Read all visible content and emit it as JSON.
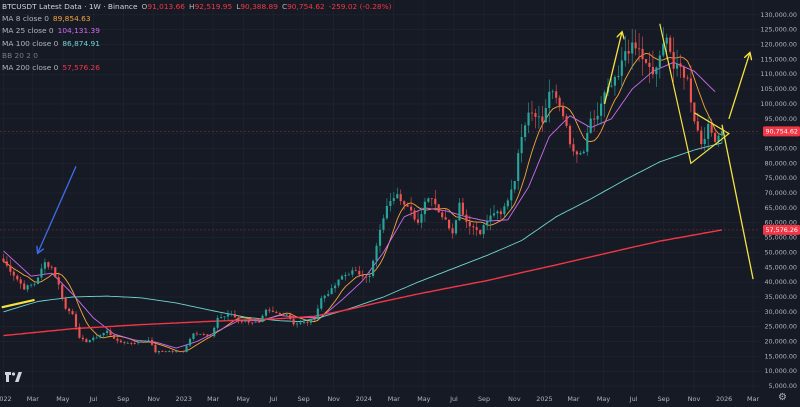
{
  "legend": {
    "title": "BTCUSDT Latest Data · 1W · Binance",
    "ohlc": {
      "o_label": "O",
      "o": "91,013.66",
      "h_label": "H",
      "h": "92,519.95",
      "l_label": "L",
      "l": "90,388.89",
      "c_label": "C",
      "c": "90,754.62",
      "chg": "-259.02 (-0.28%)"
    },
    "indicators": [
      {
        "label": "MA 8 close 0",
        "value": "89,854.63",
        "color": "#f7a53a"
      },
      {
        "label": "MA 25 close 0",
        "value": "104,131.39",
        "color": "#cc6cf0"
      },
      {
        "label": "MA 100 close 0",
        "value": "86,874.91",
        "color": "#6fd6d0"
      },
      {
        "label": "BB 20 2 0",
        "value": "",
        "color": "#787b86"
      },
      {
        "label": "MA 200 close 0",
        "value": "57,576.26",
        "color": "#f23645"
      }
    ]
  },
  "price_badges": [
    {
      "value": "90,754.62",
      "price": 90754.62,
      "color": "#f23645"
    },
    {
      "value": "57,576.26",
      "price": 57576.26,
      "color": "#f23645"
    }
  ],
  "y_ticks": [
    "5,000.00",
    "10,000.00",
    "15,000.00",
    "20,000.00",
    "25,000.00",
    "30,000.00",
    "35,000.00",
    "40,000.00",
    "45,000.00",
    "50,000.00",
    "55,000.00",
    "60,000.00",
    "65,000.00",
    "70,000.00",
    "75,000.00",
    "80,000.00",
    "85,000.00",
    "90,000.00",
    "95,000.00",
    "100,000.00",
    "105,000.00",
    "110,000.00",
    "115,000.00",
    "120,000.00",
    "125,000.00",
    "130,000.00"
  ],
  "x_ticks": [
    {
      "label": "2022",
      "week": 0
    },
    {
      "label": "Mar",
      "week": 8.5
    },
    {
      "label": "May",
      "week": 17.2
    },
    {
      "label": "Jul",
      "week": 26
    },
    {
      "label": "Sep",
      "week": 34.7
    },
    {
      "label": "Nov",
      "week": 43.5
    },
    {
      "label": "2023",
      "week": 52.2
    },
    {
      "label": "Mar",
      "week": 60.7
    },
    {
      "label": "May",
      "week": 69.4
    },
    {
      "label": "Jul",
      "week": 78.1
    },
    {
      "label": "Sep",
      "week": 86.9
    },
    {
      "label": "Nov",
      "week": 95.6
    },
    {
      "label": "2024",
      "week": 104.3
    },
    {
      "label": "Mar",
      "week": 113
    },
    {
      "label": "May",
      "week": 121.7
    },
    {
      "label": "Jul",
      "week": 130.4
    },
    {
      "label": "Sep",
      "week": 139.1
    },
    {
      "label": "Nov",
      "week": 147.9
    },
    {
      "label": "2025",
      "week": 156.6
    },
    {
      "label": "Mar",
      "week": 165
    },
    {
      "label": "May",
      "week": 173.7
    },
    {
      "label": "Jul",
      "week": 182.4
    },
    {
      "label": "Sep",
      "week": 191.1
    },
    {
      "label": "Nov",
      "week": 199.9
    },
    {
      "label": "2026",
      "week": 208.6
    },
    {
      "label": "Mar",
      "week": 217
    }
  ],
  "chart_data": {
    "type": "line",
    "up_color": "#26a69a",
    "down_color": "#ef5350",
    "ylim": [
      3000,
      135000
    ],
    "xlim_weeks": [
      -1,
      219
    ],
    "close_keypoints": [
      [
        0,
        47000
      ],
      [
        3,
        42500
      ],
      [
        6,
        38000
      ],
      [
        9,
        39500
      ],
      [
        12,
        46500
      ],
      [
        14,
        45000
      ],
      [
        16,
        39000
      ],
      [
        18,
        31000
      ],
      [
        20,
        29500
      ],
      [
        22,
        21000
      ],
      [
        24,
        20000
      ],
      [
        27,
        21500
      ],
      [
        30,
        23500
      ],
      [
        33,
        20000
      ],
      [
        36,
        19500
      ],
      [
        39,
        19800
      ],
      [
        42,
        20800
      ],
      [
        44,
        16500
      ],
      [
        47,
        16800
      ],
      [
        50,
        16600
      ],
      [
        52,
        16700
      ],
      [
        55,
        23000
      ],
      [
        58,
        22300
      ],
      [
        60,
        21500
      ],
      [
        62,
        28000
      ],
      [
        64,
        28500
      ],
      [
        66,
        29300
      ],
      [
        68,
        27000
      ],
      [
        70,
        26800
      ],
      [
        74,
        26300
      ],
      [
        76,
        30300
      ],
      [
        80,
        29200
      ],
      [
        82,
        29300
      ],
      [
        84,
        26000
      ],
      [
        88,
        26500
      ],
      [
        90,
        27900
      ],
      [
        92,
        34500
      ],
      [
        95,
        37400
      ],
      [
        98,
        41900
      ],
      [
        101,
        43600
      ],
      [
        104,
        42500
      ],
      [
        106,
        41800
      ],
      [
        108,
        52000
      ],
      [
        110,
        62000
      ],
      [
        112,
        68000
      ],
      [
        114,
        70500
      ],
      [
        116,
        66000
      ],
      [
        118,
        63500
      ],
      [
        120,
        60000
      ],
      [
        122,
        67500
      ],
      [
        124,
        69000
      ],
      [
        126,
        64000
      ],
      [
        128,
        60500
      ],
      [
        130,
        57000
      ],
      [
        132,
        66500
      ],
      [
        134,
        60500
      ],
      [
        136,
        58500
      ],
      [
        138,
        57000
      ],
      [
        140,
        60500
      ],
      [
        142,
        63500
      ],
      [
        144,
        62500
      ],
      [
        146,
        68000
      ],
      [
        148,
        75000
      ],
      [
        150,
        90000
      ],
      [
        152,
        98000
      ],
      [
        154,
        97000
      ],
      [
        156,
        94000
      ],
      [
        158,
        104000
      ],
      [
        160,
        102000
      ],
      [
        162,
        97000
      ],
      [
        164,
        86000
      ],
      [
        166,
        82000
      ],
      [
        168,
        84000
      ],
      [
        170,
        94000
      ],
      [
        172,
        96000
      ],
      [
        174,
        103000
      ],
      [
        176,
        106000
      ],
      [
        178,
        109000
      ],
      [
        180,
        118000
      ],
      [
        182,
        119000
      ],
      [
        184,
        118000
      ],
      [
        186,
        113000
      ],
      [
        188,
        110000
      ],
      [
        190,
        115000
      ],
      [
        192,
        124000
      ],
      [
        194,
        112000
      ],
      [
        196,
        112000
      ],
      [
        198,
        108000
      ],
      [
        200,
        95000
      ],
      [
        202,
        87000
      ],
      [
        204,
        92000
      ],
      [
        206,
        88500
      ],
      [
        208,
        90754
      ]
    ],
    "indicators": [
      {
        "name": "MA 25",
        "color": "#cc6cf0",
        "keypoints": [
          [
            0,
            50500
          ],
          [
            8,
            42000
          ],
          [
            14,
            43000
          ],
          [
            20,
            36000
          ],
          [
            26,
            28000
          ],
          [
            32,
            22500
          ],
          [
            38,
            20500
          ],
          [
            44,
            19800
          ],
          [
            50,
            17800
          ],
          [
            56,
            20000
          ],
          [
            62,
            23500
          ],
          [
            68,
            27000
          ],
          [
            74,
            27000
          ],
          [
            80,
            28800
          ],
          [
            86,
            28000
          ],
          [
            92,
            28200
          ],
          [
            98,
            34000
          ],
          [
            104,
            40500
          ],
          [
            110,
            50000
          ],
          [
            116,
            62000
          ],
          [
            122,
            65000
          ],
          [
            128,
            64000
          ],
          [
            134,
            62000
          ],
          [
            140,
            60500
          ],
          [
            146,
            61000
          ],
          [
            152,
            72000
          ],
          [
            158,
            89000
          ],
          [
            164,
            96000
          ],
          [
            170,
            92000
          ],
          [
            176,
            95000
          ],
          [
            182,
            105000
          ],
          [
            188,
            111000
          ],
          [
            194,
            114000
          ],
          [
            200,
            111000
          ],
          [
            206,
            104131
          ]
        ]
      },
      {
        "name": "MA 100",
        "color": "#6fd6d0",
        "keypoints": [
          [
            0,
            30000
          ],
          [
            10,
            33500
          ],
          [
            20,
            35000
          ],
          [
            30,
            35300
          ],
          [
            40,
            34700
          ],
          [
            50,
            33000
          ],
          [
            60,
            30500
          ],
          [
            70,
            28200
          ],
          [
            80,
            27000
          ],
          [
            86,
            26700
          ],
          [
            92,
            28200
          ],
          [
            100,
            31000
          ],
          [
            110,
            35000
          ],
          [
            120,
            40000
          ],
          [
            130,
            44500
          ],
          [
            140,
            49000
          ],
          [
            150,
            54000
          ],
          [
            160,
            62000
          ],
          [
            170,
            68000
          ],
          [
            180,
            74500
          ],
          [
            190,
            80500
          ],
          [
            200,
            84500
          ],
          [
            208,
            86875
          ]
        ]
      },
      {
        "name": "MA 200",
        "color": "#f23645",
        "keypoints": [
          [
            0,
            22000
          ],
          [
            20,
            24300
          ],
          [
            40,
            25700
          ],
          [
            60,
            26800
          ],
          [
            80,
            27700
          ],
          [
            90,
            28500
          ],
          [
            100,
            30800
          ],
          [
            110,
            33500
          ],
          [
            120,
            36000
          ],
          [
            130,
            38300
          ],
          [
            140,
            40500
          ],
          [
            150,
            43200
          ],
          [
            160,
            45800
          ],
          [
            170,
            48500
          ],
          [
            180,
            51200
          ],
          [
            190,
            53800
          ],
          [
            200,
            55900
          ],
          [
            208,
            57576
          ]
        ]
      }
    ],
    "annotations": [
      {
        "type": "arrow",
        "color": "#3d6ce8",
        "from": [
          21,
          79000
        ],
        "to": [
          10,
          50000
        ]
      },
      {
        "type": "arrow",
        "color": "#f5e341",
        "from": [
          174,
          100000
        ],
        "to": [
          179,
          124000
        ]
      },
      {
        "type": "arrow",
        "color": "#f5e341",
        "from": [
          210,
          95000
        ],
        "to": [
          216,
          117000
        ]
      },
      {
        "type": "line",
        "color": "#f5e341",
        "from": [
          208,
          93000
        ],
        "to": [
          217,
          41000
        ]
      },
      {
        "type": "line",
        "color": "#f5e341",
        "from": [
          -0.5,
          31500
        ],
        "to": [
          9,
          34000
        ]
      },
      {
        "type": "polyline",
        "color": "#f5e341",
        "points": [
          [
            190,
            127000
          ],
          [
            199,
            80000
          ],
          [
            210,
            90000
          ],
          [
            200,
            97000
          ]
        ]
      }
    ]
  }
}
